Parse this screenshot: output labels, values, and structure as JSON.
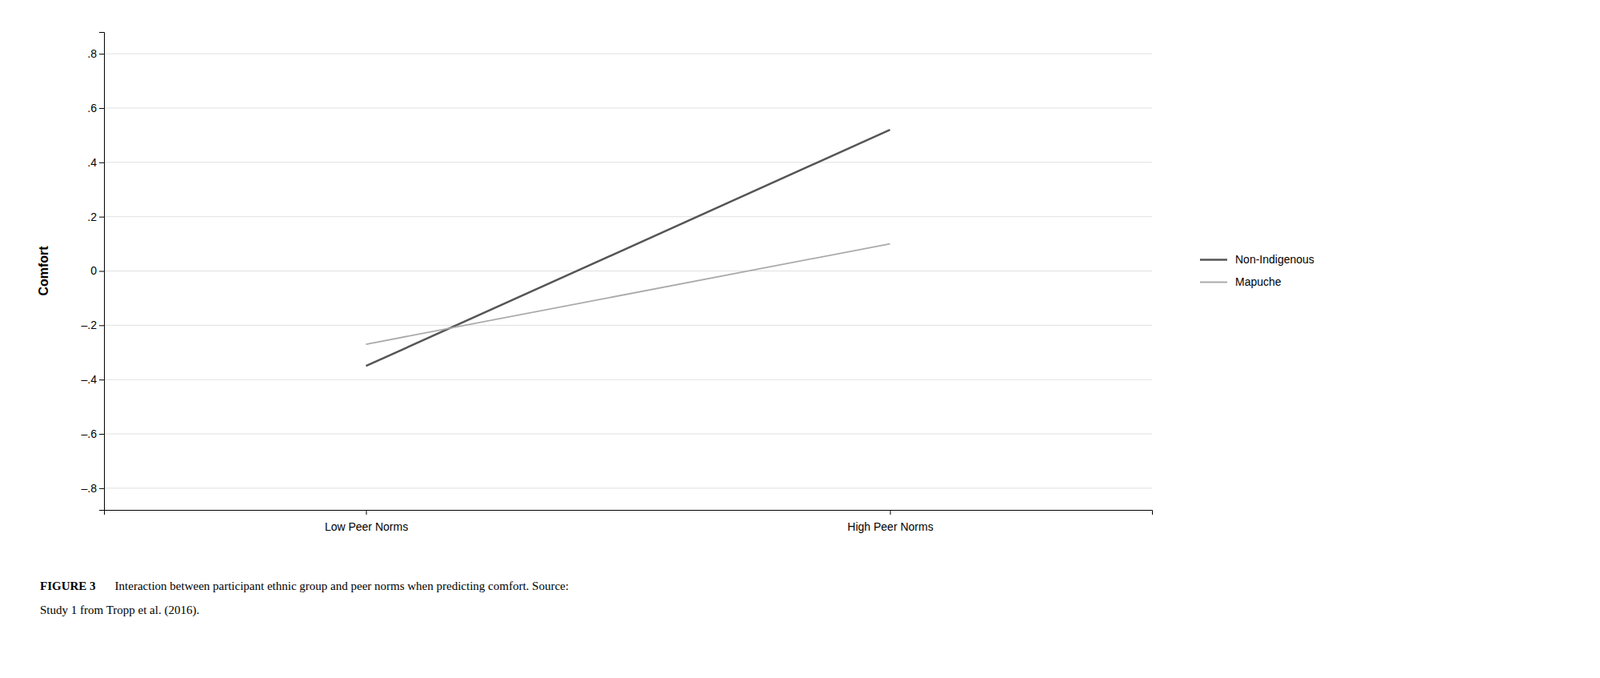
{
  "chart_data": {
    "type": "line",
    "categories": [
      "Low Peer Norms",
      "High Peer Norms"
    ],
    "series": [
      {
        "name": "Non-Indigenous",
        "color": "#555555",
        "values": [
          -0.35,
          0.52
        ]
      },
      {
        "name": "Mapuche",
        "color": "#aaaaaa",
        "values": [
          -0.27,
          0.1
        ]
      }
    ],
    "y_label": "Comfort",
    "ylim": [
      -0.88,
      0.88
    ],
    "yticks": [
      {
        "value": -0.8,
        "label": "–.8"
      },
      {
        "value": -0.6,
        "label": "–.6"
      },
      {
        "value": -0.4,
        "label": "–.4"
      },
      {
        "value": -0.2,
        "label": "–.2"
      },
      0,
      {
        "value": 0.2,
        "label": ".2"
      },
      {
        "value": 0.4,
        "label": ".4"
      },
      {
        "value": 0.6,
        "label": ".6"
      },
      {
        "value": 0.8,
        "label": ".8"
      }
    ],
    "grid": true,
    "legend": "right",
    "annotations": [
      "FIGURE 3",
      "Interaction between participant ethnic group and peer norms when predicting comfort. Source:",
      "Study 1 from Tropp et al. (2016)."
    ]
  }
}
